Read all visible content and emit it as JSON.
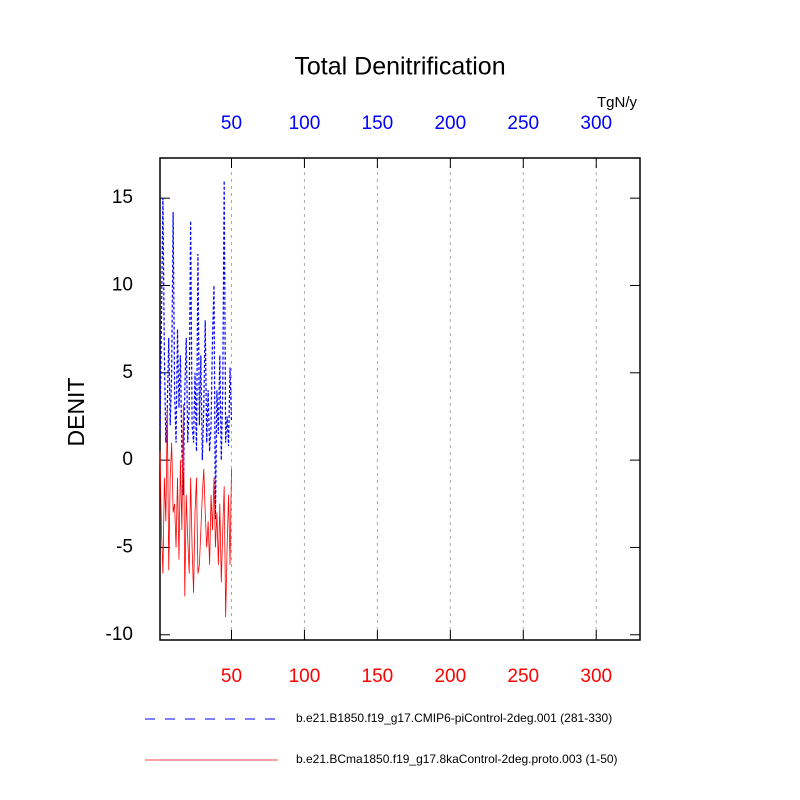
{
  "chart_data": {
    "type": "line",
    "title": "Total Denitrification",
    "ylabel": "DENIT",
    "units": "TgN/y",
    "x": [
      1,
      2,
      3,
      4,
      5,
      6,
      7,
      8,
      9,
      10,
      11,
      12,
      13,
      14,
      15,
      16,
      17,
      18,
      19,
      20,
      21,
      22,
      23,
      24,
      25,
      26,
      27,
      28,
      29,
      30,
      31,
      32,
      33,
      34,
      35,
      36,
      37,
      38,
      39,
      40,
      41,
      42,
      43,
      44,
      45,
      46,
      47,
      48,
      49,
      50
    ],
    "series": [
      {
        "name": "b.e21.B1850.f19_g17.CMIP6-piControl-2deg.001 (281-330)",
        "color": "#0000ff",
        "dash": true,
        "values": [
          1.5,
          8,
          15,
          6,
          1,
          3,
          7,
          2,
          5,
          14.2,
          4,
          1,
          7.5,
          3,
          6,
          0.5,
          -2,
          4,
          7,
          1,
          3,
          13.7,
          2,
          1,
          5,
          0.5,
          11.8,
          2,
          6,
          0,
          3,
          8,
          1,
          4,
          0.5,
          2,
          7,
          10,
          -3.4,
          4,
          1.5,
          6,
          0,
          4,
          16,
          1,
          2.5,
          0.8,
          5.3,
          2.2
        ]
      },
      {
        "name": "b.e21.BCma1850.f19_g17.8kaControl-2deg.proto.003 (1-50)",
        "color": "#ff0000",
        "dash": false,
        "values": [
          0.5,
          -4,
          -6.5,
          -1,
          -3.5,
          3,
          -6.3,
          -1,
          1,
          -3,
          -2.5,
          -5,
          -1,
          -5.7,
          0,
          -4,
          3.2,
          -7.8,
          -2,
          -4.5,
          -6.5,
          -1,
          -5,
          -7.6,
          -3,
          -1,
          -6.5,
          -6,
          -4,
          -2,
          -0.5,
          -3,
          -5,
          -3.5,
          -6,
          -2,
          -4,
          -1,
          -5,
          -3,
          -6,
          -2.5,
          -7,
          -4,
          -1.5,
          -9,
          -5,
          -2,
          -6,
          -0.5
        ]
      }
    ],
    "xlim": [
      1,
      330
    ],
    "xticks": [
      50,
      100,
      150,
      200,
      250,
      300
    ],
    "ylim": [
      -10.3,
      17.3
    ],
    "yticks": [
      15,
      10,
      5,
      0,
      -5,
      -10
    ],
    "grid": "x"
  }
}
